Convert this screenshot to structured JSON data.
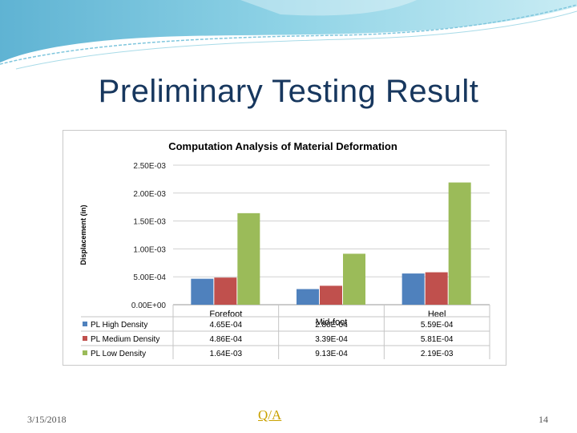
{
  "slide": {
    "title": "Preliminary Testing Result",
    "date": "3/15/2018",
    "qa_link": "Q/A",
    "page_number": "14"
  },
  "colors": {
    "title": "#17375e",
    "banner": "#7fc6dd",
    "qa": "#c9a100"
  },
  "chart_data": {
    "type": "bar",
    "title": "Computation Analysis of Material Deformation",
    "ylabel": "Displacement (in)",
    "xlabel": "",
    "categories": [
      "Forefoot",
      "Mid-foot",
      "Heel"
    ],
    "ylim": [
      0,
      0.0025
    ],
    "yticks": [
      0,
      0.0005,
      0.001,
      0.0015,
      0.002,
      0.0025
    ],
    "ytick_labels": [
      "0.00E+00",
      "5.00E-04",
      "1.00E-03",
      "1.50E-03",
      "2.00E-03",
      "2.50E-03"
    ],
    "grid": true,
    "series": [
      {
        "name": "PL High Density",
        "color": "#4f81bd",
        "values": [
          0.000465,
          0.00028,
          0.000559
        ],
        "labels": [
          "4.65E-04",
          "2.80E-04",
          "5.59E-04"
        ]
      },
      {
        "name": "PL Medium Density",
        "color": "#c0504d",
        "values": [
          0.000486,
          0.000339,
          0.000581
        ],
        "labels": [
          "4.86E-04",
          "3.39E-04",
          "5.81E-04"
        ]
      },
      {
        "name": "PL Low Density",
        "color": "#9bbb59",
        "values": [
          0.00164,
          0.000913,
          0.00219
        ],
        "labels": [
          "1.64E-03",
          "9.13E-04",
          "2.19E-03"
        ]
      }
    ]
  }
}
